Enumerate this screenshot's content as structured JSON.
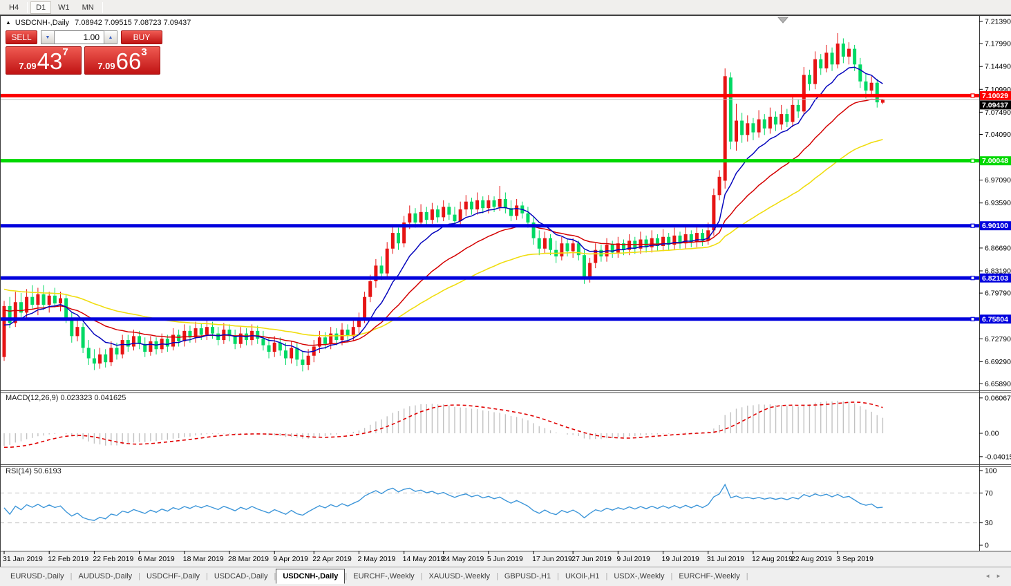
{
  "toolbar": {
    "timeframes": [
      "H4",
      "D1",
      "W1",
      "MN"
    ],
    "active": "D1"
  },
  "chart": {
    "collapse_arrow": "▲",
    "symbol": "USDCNH-,Daily",
    "ohlc": "7.08942 7.09515 7.08723 7.09437"
  },
  "trade_panel": {
    "sell_label": "SELL",
    "buy_label": "BUY",
    "volume": "1.00",
    "spin_down": "▼",
    "spin_up": "▲",
    "sell_price": {
      "prefix": "7.09",
      "big": "43",
      "sup": "7"
    },
    "buy_price": {
      "prefix": "7.09",
      "big": "66",
      "sup": "3"
    }
  },
  "colors": {
    "bull": "#e61414",
    "bear": "#00d964",
    "ma_fast": "#0606bd",
    "ma_mid": "#d40000",
    "ma_slow": "#f0dd10",
    "hline_red": "#fd0000",
    "hline_green": "#00d800",
    "hline_blue": "#0202dd",
    "current_line": "#bdbdbd",
    "current_badge": "#000000",
    "macd_hist": "#c2c2c2",
    "macd_signal": "#e00000",
    "rsi_line": "#3d96d9",
    "axis_text": "#000000",
    "pane_border": "#3c3c3c",
    "marker_gray": "#b3b3b3"
  },
  "price_axis": {
    "ticks": [
      {
        "v": 7.2139,
        "label": "7.21390"
      },
      {
        "v": 7.1799,
        "label": "7.17990"
      },
      {
        "v": 7.1449,
        "label": "7.14490"
      },
      {
        "v": 7.1099,
        "label": "7.10990"
      },
      {
        "v": 7.0749,
        "label": "7.07490"
      },
      {
        "v": 7.0409,
        "label": "7.04090"
      },
      {
        "v": 6.9709,
        "label": "6.97090"
      },
      {
        "v": 6.9359,
        "label": "6.93590"
      },
      {
        "v": 6.8669,
        "label": "6.86690"
      },
      {
        "v": 6.8319,
        "label": "6.83190"
      },
      {
        "v": 6.7979,
        "label": "6.79790"
      },
      {
        "v": 6.7279,
        "label": "6.72790"
      },
      {
        "v": 6.6929,
        "label": "6.69290"
      },
      {
        "v": 6.6589,
        "label": "6.65890"
      }
    ]
  },
  "hlines": [
    {
      "price": 7.10029,
      "label": "7.10029",
      "color_key": "hline_red"
    },
    {
      "price": 7.00048,
      "label": "7.00048",
      "color_key": "hline_green"
    },
    {
      "price": 6.901,
      "label": "6.90100",
      "color_key": "hline_blue"
    },
    {
      "price": 6.82103,
      "label": "6.82103",
      "color_key": "hline_blue"
    },
    {
      "price": 6.75804,
      "label": "6.75804",
      "color_key": "hline_blue"
    }
  ],
  "current_price": {
    "value": 7.09437,
    "label": "7.09437"
  },
  "macd_pane": {
    "label": "MACD(12,26,9)",
    "value_main": "0.023323",
    "value_signal": "0.041625",
    "axis": [
      {
        "v": 0.060674,
        "label": "0.060674"
      },
      {
        "v": 0,
        "label": "0.00"
      },
      {
        "v": -0.040152,
        "label": "-0.040152"
      }
    ]
  },
  "rsi_pane": {
    "label": "RSI(14)",
    "value": "50.6193",
    "levels": [
      {
        "v": 100,
        "label": "100"
      },
      {
        "v": 70,
        "label": "70"
      },
      {
        "v": 30,
        "label": "30"
      },
      {
        "v": 0,
        "label": "0"
      }
    ],
    "dashed_levels": [
      70,
      30
    ]
  },
  "tabs": {
    "items": [
      "EURUSD-,Daily",
      "AUDUSD-,Daily",
      "USDCHF-,Daily",
      "USDCAD-,Daily",
      "USDCNH-,Daily",
      "EURCHF-,Weekly",
      "XAUUSD-,Weekly",
      "GBPUSD-,H1",
      "UKOil-,H1",
      "USDX-,Weekly",
      "EURCHF-,Weekly"
    ],
    "active_index": 4,
    "arrow_left": "◄",
    "arrow_right": "►"
  },
  "chart_data": {
    "type": "candlestick",
    "symbol": "USDCNH",
    "timeframe": "Daily",
    "indicators": {
      "ma_periods": [
        10,
        25,
        52
      ],
      "macd": [
        12,
        26,
        9
      ],
      "rsi": 14
    },
    "x_labels": [
      [
        0,
        "31 Jan 2019"
      ],
      [
        8,
        "12 Feb 2019"
      ],
      [
        16,
        "22 Feb 2019"
      ],
      [
        24,
        "6 Mar 2019"
      ],
      [
        32,
        "18 Mar 2019"
      ],
      [
        40,
        "28 Mar 2019"
      ],
      [
        48,
        "9 Apr 2019"
      ],
      [
        55,
        "22 Apr 2019"
      ],
      [
        63,
        "2 May 2019"
      ],
      [
        71,
        "14 May 2019"
      ],
      [
        78,
        "24 May 2019"
      ],
      [
        86,
        "5 Jun 2019"
      ],
      [
        94,
        "17 Jun 2019"
      ],
      [
        101,
        "27 Jun 2019"
      ],
      [
        109,
        "9 Jul 2019"
      ],
      [
        117,
        "19 Jul 2019"
      ],
      [
        125,
        "31 Jul 2019"
      ],
      [
        133,
        "12 Aug 2019"
      ],
      [
        140,
        "22 Aug 2019"
      ],
      [
        148,
        "3 Sep 2019"
      ]
    ],
    "warmup_closes": [
      6.884,
      6.878,
      6.87,
      6.874,
      6.862,
      6.856,
      6.86,
      6.848,
      6.842,
      6.85,
      6.838,
      6.83,
      6.834,
      6.824,
      6.818,
      6.822,
      6.812,
      6.806,
      6.81,
      6.8,
      6.796,
      6.8,
      6.79,
      6.786,
      6.79,
      6.782,
      6.778,
      6.782,
      6.774,
      6.77,
      6.774,
      6.766,
      6.76,
      6.752,
      6.744,
      6.736,
      6.726,
      6.718,
      6.726,
      6.736
    ],
    "candles": [
      [
        6.7,
        6.786,
        6.694,
        6.778
      ],
      [
        6.778,
        6.792,
        6.744,
        6.752
      ],
      [
        6.752,
        6.8,
        6.746,
        6.784
      ],
      [
        6.784,
        6.798,
        6.76,
        6.768
      ],
      [
        6.768,
        6.804,
        6.758,
        6.792
      ],
      [
        6.792,
        6.81,
        6.774,
        6.78
      ],
      [
        6.78,
        6.806,
        6.764,
        6.796
      ],
      [
        6.796,
        6.81,
        6.772,
        6.78
      ],
      [
        6.78,
        6.8,
        6.768,
        6.794
      ],
      [
        6.794,
        6.806,
        6.776,
        6.782
      ],
      [
        6.782,
        6.8,
        6.77,
        6.79
      ],
      [
        6.79,
        6.796,
        6.752,
        6.76
      ],
      [
        6.76,
        6.768,
        6.722,
        6.732
      ],
      [
        6.732,
        6.756,
        6.724,
        6.746
      ],
      [
        6.746,
        6.752,
        6.706,
        6.714
      ],
      [
        6.714,
        6.726,
        6.688,
        6.698
      ],
      [
        6.698,
        6.712,
        6.68,
        6.69
      ],
      [
        6.69,
        6.714,
        6.682,
        6.704
      ],
      [
        6.704,
        6.712,
        6.684,
        6.692
      ],
      [
        6.692,
        6.724,
        6.686,
        6.714
      ],
      [
        6.714,
        6.722,
        6.696,
        6.704
      ],
      [
        6.704,
        6.734,
        6.698,
        6.726
      ],
      [
        6.726,
        6.734,
        6.708,
        6.716
      ],
      [
        6.716,
        6.742,
        6.71,
        6.732
      ],
      [
        6.732,
        6.74,
        6.712,
        6.72
      ],
      [
        6.72,
        6.73,
        6.7,
        6.708
      ],
      [
        6.708,
        6.732,
        6.702,
        6.724
      ],
      [
        6.724,
        6.73,
        6.704,
        6.712
      ],
      [
        6.712,
        6.736,
        6.706,
        6.728
      ],
      [
        6.728,
        6.734,
        6.708,
        6.716
      ],
      [
        6.716,
        6.744,
        6.71,
        6.734
      ],
      [
        6.734,
        6.742,
        6.716,
        6.724
      ],
      [
        6.724,
        6.75,
        6.716,
        6.74
      ],
      [
        6.74,
        6.748,
        6.722,
        6.73
      ],
      [
        6.73,
        6.754,
        6.722,
        6.744
      ],
      [
        6.744,
        6.752,
        6.726,
        6.734
      ],
      [
        6.734,
        6.758,
        6.726,
        6.746
      ],
      [
        6.746,
        6.754,
        6.728,
        6.736
      ],
      [
        6.736,
        6.746,
        6.718,
        6.726
      ],
      [
        6.726,
        6.752,
        6.72,
        6.742
      ],
      [
        6.742,
        6.75,
        6.724,
        6.732
      ],
      [
        6.732,
        6.742,
        6.712,
        6.72
      ],
      [
        6.72,
        6.746,
        6.714,
        6.736
      ],
      [
        6.736,
        6.744,
        6.718,
        6.726
      ],
      [
        6.726,
        6.75,
        6.718,
        6.74
      ],
      [
        6.74,
        6.748,
        6.72,
        6.728
      ],
      [
        6.728,
        6.74,
        6.71,
        6.718
      ],
      [
        6.718,
        6.73,
        6.698,
        6.708
      ],
      [
        6.708,
        6.732,
        6.7,
        6.722
      ],
      [
        6.722,
        6.73,
        6.702,
        6.71
      ],
      [
        6.71,
        6.722,
        6.688,
        6.698
      ],
      [
        6.698,
        6.724,
        6.69,
        6.714
      ],
      [
        6.714,
        6.722,
        6.686,
        6.696
      ],
      [
        6.696,
        6.708,
        6.678,
        6.688
      ],
      [
        6.688,
        6.712,
        6.68,
        6.702
      ],
      [
        6.702,
        6.726,
        6.692,
        6.716
      ],
      [
        6.716,
        6.74,
        6.706,
        6.73
      ],
      [
        6.73,
        6.738,
        6.712,
        6.72
      ],
      [
        6.72,
        6.746,
        6.712,
        6.736
      ],
      [
        6.736,
        6.744,
        6.718,
        6.726
      ],
      [
        6.726,
        6.752,
        6.718,
        6.742
      ],
      [
        6.742,
        6.75,
        6.724,
        6.732
      ],
      [
        6.732,
        6.756,
        6.724,
        6.746
      ],
      [
        6.746,
        6.768,
        6.736,
        6.76
      ],
      [
        6.76,
        6.8,
        6.752,
        6.792
      ],
      [
        6.792,
        6.826,
        6.784,
        6.816
      ],
      [
        6.816,
        6.85,
        6.806,
        6.84
      ],
      [
        6.84,
        6.854,
        6.818,
        6.828
      ],
      [
        6.828,
        6.876,
        6.822,
        6.866
      ],
      [
        6.866,
        6.902,
        6.858,
        6.89
      ],
      [
        6.89,
        6.898,
        6.864,
        6.874
      ],
      [
        6.874,
        6.916,
        6.868,
        6.906
      ],
      [
        6.906,
        6.932,
        6.896,
        6.92
      ],
      [
        6.92,
        6.928,
        6.898,
        6.906
      ],
      [
        6.906,
        6.934,
        6.9,
        6.922
      ],
      [
        6.922,
        6.93,
        6.902,
        6.91
      ],
      [
        6.91,
        6.936,
        6.904,
        6.926
      ],
      [
        6.926,
        6.932,
        6.906,
        6.914
      ],
      [
        6.914,
        6.94,
        6.908,
        6.93
      ],
      [
        6.93,
        6.936,
        6.91,
        6.918
      ],
      [
        6.918,
        6.93,
        6.9,
        6.908
      ],
      [
        6.908,
        6.938,
        6.902,
        6.926
      ],
      [
        6.926,
        6.948,
        6.916,
        6.938
      ],
      [
        6.938,
        6.944,
        6.918,
        6.926
      ],
      [
        6.926,
        6.952,
        6.918,
        6.94
      ],
      [
        6.94,
        6.946,
        6.92,
        6.928
      ],
      [
        6.928,
        6.948,
        6.92,
        6.94
      ],
      [
        6.94,
        6.946,
        6.922,
        6.93
      ],
      [
        6.93,
        6.962,
        6.924,
        6.942
      ],
      [
        6.942,
        6.952,
        6.92,
        6.928
      ],
      [
        6.928,
        6.94,
        6.908,
        6.916
      ],
      [
        6.916,
        6.942,
        6.91,
        6.932
      ],
      [
        6.932,
        6.938,
        6.912,
        6.92
      ],
      [
        6.92,
        6.93,
        6.898,
        6.906
      ],
      [
        6.906,
        6.914,
        6.872,
        6.882
      ],
      [
        6.882,
        6.894,
        6.856,
        6.866
      ],
      [
        6.866,
        6.892,
        6.858,
        6.882
      ],
      [
        6.882,
        6.888,
        6.856,
        6.864
      ],
      [
        6.864,
        6.878,
        6.844,
        6.854
      ],
      [
        6.854,
        6.884,
        6.848,
        6.874
      ],
      [
        6.874,
        6.88,
        6.854,
        6.862
      ],
      [
        6.862,
        6.882,
        6.852,
        6.874
      ],
      [
        6.874,
        6.878,
        6.848,
        6.856
      ],
      [
        6.856,
        6.864,
        6.812,
        6.822
      ],
      [
        6.822,
        6.852,
        6.814,
        6.844
      ],
      [
        6.844,
        6.874,
        6.836,
        6.864
      ],
      [
        6.864,
        6.872,
        6.846,
        6.854
      ],
      [
        6.854,
        6.882,
        6.846,
        6.872
      ],
      [
        6.872,
        6.878,
        6.852,
        6.86
      ],
      [
        6.86,
        6.884,
        6.852,
        6.874
      ],
      [
        6.874,
        6.88,
        6.856,
        6.864
      ],
      [
        6.864,
        6.888,
        6.856,
        6.878
      ],
      [
        6.878,
        6.884,
        6.858,
        6.866
      ],
      [
        6.866,
        6.892,
        6.858,
        6.88
      ],
      [
        6.88,
        6.886,
        6.86,
        6.868
      ],
      [
        6.868,
        6.894,
        6.86,
        6.882
      ],
      [
        6.882,
        6.888,
        6.862,
        6.87
      ],
      [
        6.87,
        6.896,
        6.862,
        6.884
      ],
      [
        6.884,
        6.89,
        6.864,
        6.872
      ],
      [
        6.872,
        6.898,
        6.864,
        6.886
      ],
      [
        6.886,
        6.892,
        6.866,
        6.874
      ],
      [
        6.874,
        6.9,
        6.866,
        6.888
      ],
      [
        6.888,
        6.894,
        6.868,
        6.876
      ],
      [
        6.876,
        6.902,
        6.868,
        6.89
      ],
      [
        6.89,
        6.896,
        6.87,
        6.878
      ],
      [
        6.878,
        6.906,
        6.872,
        6.894
      ],
      [
        6.894,
        6.958,
        6.886,
        6.948
      ],
      [
        6.948,
        6.986,
        6.94,
        6.976
      ],
      [
        6.97,
        7.142,
        6.958,
        7.13
      ],
      [
        7.128,
        7.136,
        7.018,
        7.03
      ],
      [
        7.03,
        7.088,
        7.016,
        7.062
      ],
      [
        7.062,
        7.074,
        7.028,
        7.04
      ],
      [
        7.04,
        7.07,
        7.03,
        7.058
      ],
      [
        7.058,
        7.066,
        7.032,
        7.044
      ],
      [
        7.044,
        7.078,
        7.036,
        7.064
      ],
      [
        7.064,
        7.072,
        7.04,
        7.05
      ],
      [
        7.05,
        7.082,
        7.042,
        7.068
      ],
      [
        7.068,
        7.076,
        7.046,
        7.056
      ],
      [
        7.056,
        7.086,
        7.048,
        7.072
      ],
      [
        7.072,
        7.08,
        7.052,
        7.06
      ],
      [
        7.06,
        7.098,
        7.052,
        7.086
      ],
      [
        7.086,
        7.094,
        7.066,
        7.076
      ],
      [
        7.076,
        7.144,
        7.07,
        7.132
      ],
      [
        7.132,
        7.14,
        7.108,
        7.118
      ],
      [
        7.118,
        7.168,
        7.11,
        7.156
      ],
      [
        7.156,
        7.164,
        7.132,
        7.142
      ],
      [
        7.142,
        7.178,
        7.136,
        7.166
      ],
      [
        7.166,
        7.174,
        7.138,
        7.148
      ],
      [
        7.148,
        7.196,
        7.142,
        7.18
      ],
      [
        7.18,
        7.188,
        7.15,
        7.16
      ],
      [
        7.16,
        7.182,
        7.148,
        7.172
      ],
      [
        7.172,
        7.178,
        7.138,
        7.148
      ],
      [
        7.148,
        7.158,
        7.112,
        7.122
      ],
      [
        7.122,
        7.134,
        7.096,
        7.108
      ],
      [
        7.108,
        7.13,
        7.098,
        7.12
      ],
      [
        7.12,
        7.126,
        7.082,
        7.09
      ],
      [
        7.08942,
        7.09515,
        7.08723,
        7.09437
      ]
    ]
  }
}
